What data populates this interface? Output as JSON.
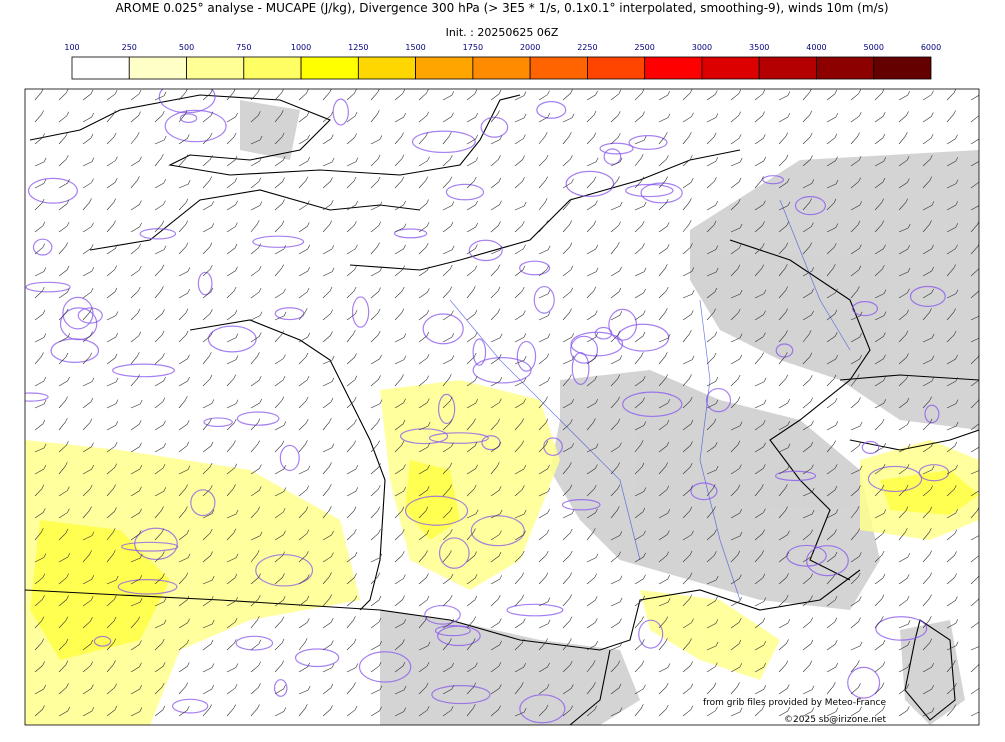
{
  "header": {
    "title": "AROME 0.025° analyse - MUCAPE (J/kg), Divergence 300 hPa (> 3E5 * 1/s, 0.1x0.1° interpolated, smoothing-9), winds 10m (m/s)",
    "init": "Init. : 20250625 06Z"
  },
  "colorbar": {
    "ticks": [
      "100",
      "250",
      "500",
      "750",
      "1000",
      "1250",
      "1500",
      "1750",
      "2000",
      "2250",
      "2500",
      "3000",
      "3500",
      "4000",
      "5000",
      "6000"
    ],
    "colors": [
      "#ffffff",
      "#ffffc8",
      "#ffff96",
      "#ffff64",
      "#ffff00",
      "#ffd700",
      "#ffa500",
      "#ff8c00",
      "#ff6400",
      "#ff4500",
      "#ff0000",
      "#dc0000",
      "#b40000",
      "#8c0000",
      "#640000"
    ]
  },
  "credits": {
    "line1": "from grib files provided by Meteo-France",
    "line2": "©2025 sb@irizone.net"
  }
}
